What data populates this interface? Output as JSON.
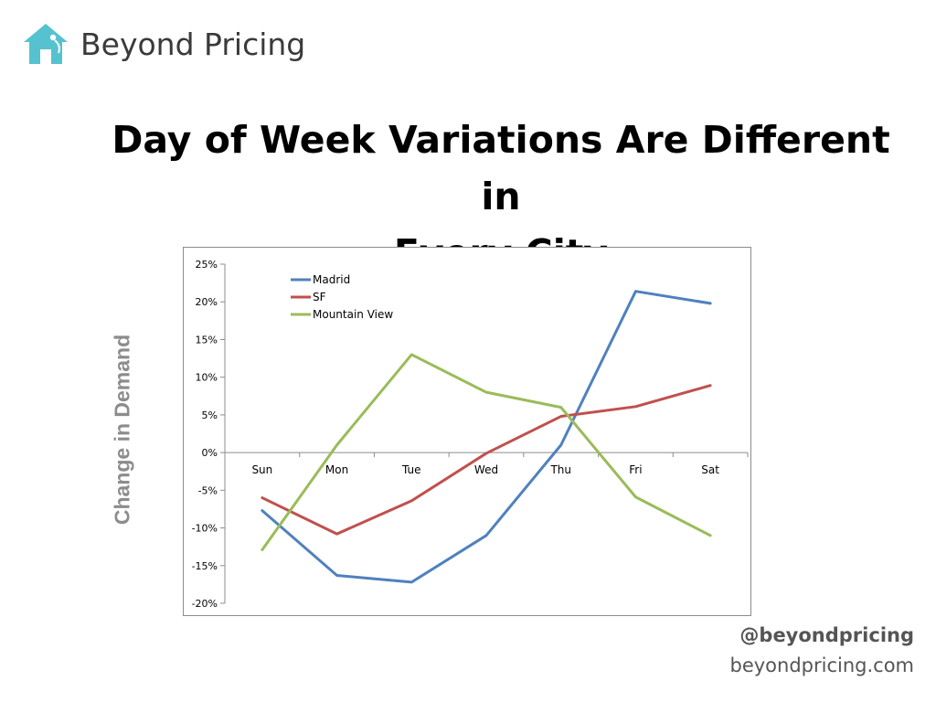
{
  "brand": {
    "name": "Beyond Pricing",
    "logo_icon": "house-tag-icon",
    "logo_color": "#56c2cf"
  },
  "slide": {
    "title_line1": "Day of Week Variations Are Different in",
    "title_line2": "Every City"
  },
  "chart_data": {
    "type": "line",
    "title": "",
    "xlabel": "",
    "ylabel": "Change in Demand",
    "categories": [
      "Sun",
      "Mon",
      "Tue",
      "Wed",
      "Thu",
      "Fri",
      "Sat"
    ],
    "ylim": [
      -0.2,
      0.25
    ],
    "yticks": [
      {
        "value": 0.25,
        "label": "25%"
      },
      {
        "value": 0.2,
        "label": "20%"
      },
      {
        "value": 0.15,
        "label": "15%"
      },
      {
        "value": 0.1,
        "label": "10%"
      },
      {
        "value": 0.05,
        "label": "5%"
      },
      {
        "value": 0.0,
        "label": "0%"
      },
      {
        "value": -0.05,
        "label": "-5%"
      },
      {
        "value": -0.1,
        "label": "-10%"
      },
      {
        "value": -0.15,
        "label": "-15%"
      },
      {
        "value": -0.2,
        "label": "-20%"
      }
    ],
    "grid": false,
    "legend_position": "top-left",
    "series": [
      {
        "name": "Madrid",
        "color": "#4f81bd",
        "values": [
          -0.077,
          -0.163,
          -0.172,
          -0.11,
          0.01,
          0.214,
          0.198
        ]
      },
      {
        "name": "SF",
        "color": "#c0504d",
        "values": [
          -0.06,
          -0.108,
          -0.064,
          -0.001,
          0.048,
          0.061,
          0.089
        ]
      },
      {
        "name": "Mountain View",
        "color": "#9bbb59",
        "values": [
          -0.129,
          0.01,
          0.13,
          0.08,
          0.06,
          -0.059,
          -0.11
        ]
      }
    ]
  },
  "footer": {
    "handle": "@beyondpricing",
    "website": "beyondpricing.com"
  }
}
